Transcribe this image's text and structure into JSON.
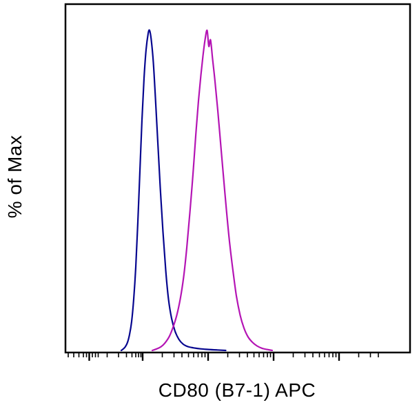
{
  "figure": {
    "background": "#ffffff",
    "frame_color": "#000000"
  },
  "chart_data": {
    "type": "line",
    "chart_kind": "flow-cytometry-histogram",
    "title": "",
    "xlabel": "CD80 (B7-1) APC",
    "ylabel": "% of Max",
    "x_scale": "biexponential",
    "x_tick_labels": [],
    "y_tick_labels": [],
    "ylim": [
      0,
      100
    ],
    "legend": "none",
    "grid": false,
    "series": [
      {
        "name": "blue-histogram",
        "color": "#06068f",
        "stroke_width": 2.2,
        "peak_x_fraction": 0.244,
        "peak_y_percent": 100,
        "points": [
          [
            0.162,
            0
          ],
          [
            0.168,
            0.5
          ],
          [
            0.174,
            1.2
          ],
          [
            0.18,
            2.5
          ],
          [
            0.186,
            5
          ],
          [
            0.192,
            9
          ],
          [
            0.198,
            16
          ],
          [
            0.204,
            26
          ],
          [
            0.21,
            40
          ],
          [
            0.216,
            56
          ],
          [
            0.222,
            72
          ],
          [
            0.228,
            85
          ],
          [
            0.234,
            94
          ],
          [
            0.24,
            99
          ],
          [
            0.244,
            100
          ],
          [
            0.249,
            97
          ],
          [
            0.255,
            90
          ],
          [
            0.261,
            79
          ],
          [
            0.268,
            65
          ],
          [
            0.275,
            51
          ],
          [
            0.283,
            37
          ],
          [
            0.291,
            25
          ],
          [
            0.299,
            16
          ],
          [
            0.308,
            10
          ],
          [
            0.318,
            6
          ],
          [
            0.329,
            3.5
          ],
          [
            0.341,
            2
          ],
          [
            0.355,
            1.2
          ],
          [
            0.372,
            0.8
          ],
          [
            0.392,
            0.5
          ],
          [
            0.415,
            0.3
          ],
          [
            0.44,
            0.15
          ],
          [
            0.465,
            0
          ]
        ]
      },
      {
        "name": "magenta-histogram",
        "color": "#b414b4",
        "stroke_width": 2.2,
        "peak_x_fraction": 0.411,
        "peak_y_percent": 100,
        "points": [
          [
            0.252,
            0
          ],
          [
            0.265,
            0.5
          ],
          [
            0.278,
            1.2
          ],
          [
            0.29,
            2.5
          ],
          [
            0.302,
            4.5
          ],
          [
            0.313,
            7.5
          ],
          [
            0.323,
            11
          ],
          [
            0.333,
            16
          ],
          [
            0.343,
            23
          ],
          [
            0.352,
            32
          ],
          [
            0.361,
            43
          ],
          [
            0.37,
            55
          ],
          [
            0.378,
            67
          ],
          [
            0.386,
            78
          ],
          [
            0.393,
            86
          ],
          [
            0.399,
            92
          ],
          [
            0.405,
            97
          ],
          [
            0.411,
            100
          ],
          [
            0.416,
            95
          ],
          [
            0.421,
            97
          ],
          [
            0.427,
            91
          ],
          [
            0.434,
            84
          ],
          [
            0.442,
            75
          ],
          [
            0.45,
            65
          ],
          [
            0.458,
            55
          ],
          [
            0.467,
            44
          ],
          [
            0.476,
            34
          ],
          [
            0.486,
            25
          ],
          [
            0.496,
            17
          ],
          [
            0.507,
            11
          ],
          [
            0.518,
            7
          ],
          [
            0.53,
            4.2
          ],
          [
            0.543,
            2.5
          ],
          [
            0.556,
            1.4
          ],
          [
            0.57,
            0.7
          ],
          [
            0.585,
            0.3
          ],
          [
            0.6,
            0
          ]
        ]
      }
    ],
    "x_ticks_major": [
      0.069,
      0.224,
      0.414,
      0.604,
      0.794
    ],
    "x_ticks_minor": [
      0.008,
      0.024,
      0.039,
      0.052,
      0.061,
      0.078,
      0.087,
      0.095,
      0.121,
      0.154,
      0.177,
      0.193,
      0.204,
      0.212,
      0.219,
      0.281,
      0.315,
      0.338,
      0.357,
      0.372,
      0.385,
      0.396,
      0.405,
      0.471,
      0.505,
      0.528,
      0.547,
      0.562,
      0.575,
      0.586,
      0.595,
      0.661,
      0.695,
      0.718,
      0.737,
      0.752,
      0.765,
      0.776,
      0.785,
      0.851,
      0.885,
      0.908
    ]
  }
}
